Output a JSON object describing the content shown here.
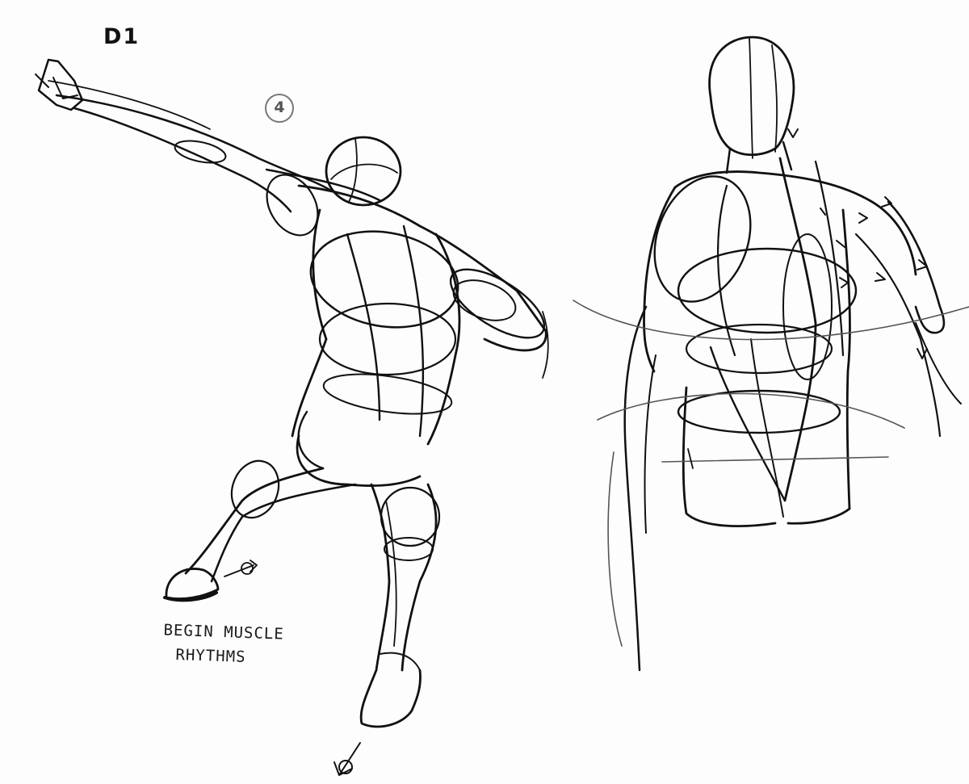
{
  "sheet": {
    "label": "D1",
    "step_number": "4",
    "note_line1": "BEGIN MUSCLE",
    "note_line2": "RHYTHMS"
  },
  "figures": [
    {
      "name": "lunging-figure-rear-view"
    },
    {
      "name": "back-torso-study"
    }
  ],
  "colors": {
    "ink": "#111111",
    "paper": "#fdfdfd"
  }
}
